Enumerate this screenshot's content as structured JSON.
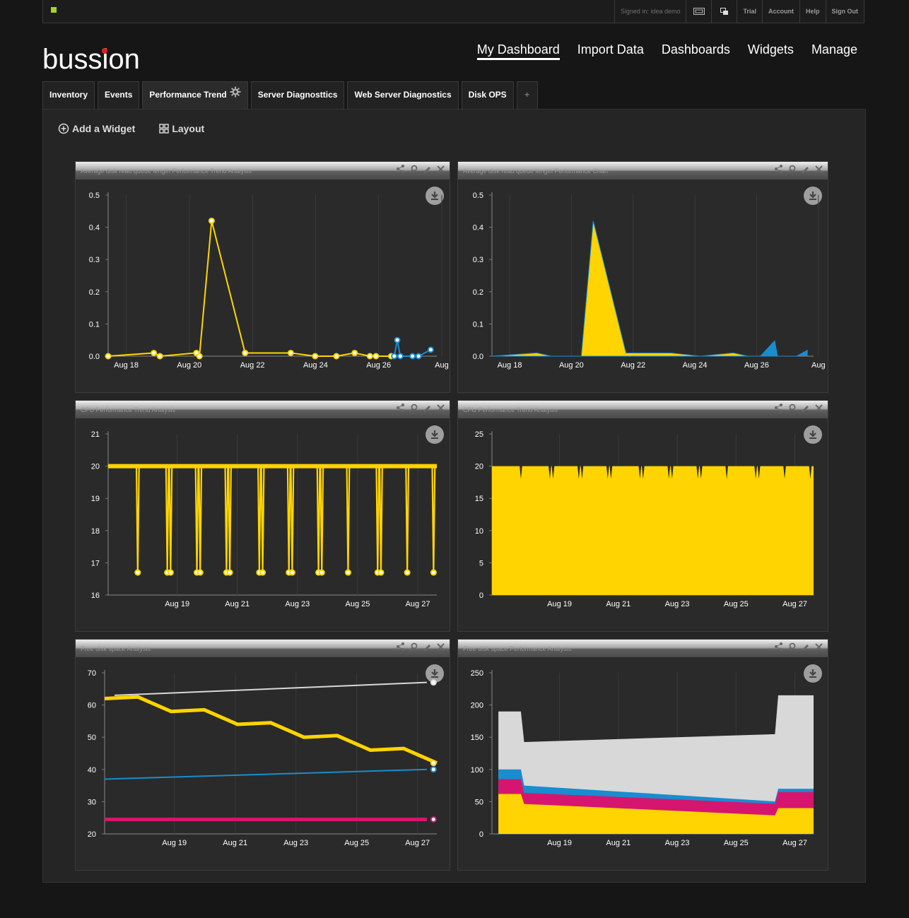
{
  "topbar": {
    "signed_in": "Signed in: idea demo",
    "links": [
      "Trial",
      "Account",
      "Help",
      "Sign Out"
    ],
    "icons": [
      "fullscreen-icon",
      "windows-icon"
    ]
  },
  "logo": "bussion",
  "nav": [
    "My Dashboard",
    "Import Data",
    "Dashboards",
    "Widgets",
    "Manage"
  ],
  "tabs": [
    "Inventory",
    "Events",
    "Performance Trend",
    "Server Diagnosttics",
    "Web Server Diagnostics",
    "Disk OPS",
    "+"
  ],
  "actions": {
    "add_widget": "Add a Widget",
    "layout": "Layout"
  },
  "colors": {
    "yellow": "#ffd400",
    "blue": "#1a8cd0",
    "magenta": "#d6156f",
    "gray": "#d8d8d8",
    "accent": "#a6d51e"
  },
  "widgets": [
    {
      "title": "Average disk read queue length Performance Trend Analysis",
      "chart_data": {
        "type": "line",
        "x_labels": [
          "Aug 18",
          "Aug 20",
          "Aug 22",
          "Aug 24",
          "Aug 26",
          "Aug"
        ],
        "y_ticks": [
          "0.5",
          "0.4",
          "0.3",
          "0.2",
          "0.1",
          "0.0"
        ],
        "ylim": [
          0,
          0.5
        ],
        "series": [
          {
            "color": "#ffd400",
            "points": [
              [
                0,
                0
              ],
              [
                1.5,
                0.01
              ],
              [
                1.7,
                0
              ],
              [
                2.9,
                0.01
              ],
              [
                3.0,
                0
              ],
              [
                3.4,
                0.42
              ],
              [
                4.5,
                0.01
              ],
              [
                6.0,
                0.01
              ],
              [
                6.8,
                0
              ],
              [
                7.5,
                0
              ],
              [
                8.1,
                0.01
              ],
              [
                8.6,
                0
              ],
              [
                8.8,
                0
              ],
              [
                9.3,
                0
              ]
            ]
          },
          {
            "color": "#1a8cd0",
            "points": [
              [
                9.4,
                0
              ],
              [
                9.5,
                0.05
              ],
              [
                9.6,
                0
              ],
              [
                10.0,
                0
              ],
              [
                10.2,
                0
              ],
              [
                10.6,
                0.02
              ]
            ]
          }
        ]
      }
    },
    {
      "title": "Average disk read queue length Performance Chart",
      "chart_data": {
        "type": "area",
        "x_labels": [
          "Aug 18",
          "Aug 20",
          "Aug 22",
          "Aug 24",
          "Aug 26",
          "Aug"
        ],
        "y_ticks": [
          "0.5",
          "0.4",
          "0.3",
          "0.2",
          "0.1",
          "0.0"
        ],
        "ylim": [
          0,
          0.5
        ],
        "series": [
          {
            "color": "#ffd400",
            "points": [
              [
                0,
                0
              ],
              [
                1.5,
                0.01
              ],
              [
                2.0,
                0
              ],
              [
                3.0,
                0
              ],
              [
                3.4,
                0.42
              ],
              [
                4.5,
                0.01
              ],
              [
                6.0,
                0.01
              ],
              [
                7.0,
                0
              ],
              [
                8.1,
                0.01
              ],
              [
                8.6,
                0
              ],
              [
                10.3,
                0
              ]
            ]
          },
          {
            "color": "#1a8cd0",
            "points": [
              [
                9.0,
                0
              ],
              [
                9.5,
                0.05
              ],
              [
                9.6,
                0
              ],
              [
                10.2,
                0
              ],
              [
                10.6,
                0.02
              ]
            ]
          }
        ]
      }
    },
    {
      "title": "CPU Performance Trend Analysis",
      "chart_data": {
        "type": "line",
        "x_labels": [
          "Aug 19",
          "Aug 21",
          "Aug 23",
          "Aug 25",
          "Aug 27"
        ],
        "y_ticks": [
          "21",
          "20",
          "19",
          "18",
          "17",
          "16"
        ],
        "ylim": [
          16,
          21
        ],
        "value": 20,
        "dip_to": 16.7
      }
    },
    {
      "title": "CPU Performance Trend Analysis",
      "chart_data": {
        "type": "area",
        "x_labels": [
          "Aug 19",
          "Aug 21",
          "Aug 23",
          "Aug 25",
          "Aug 27"
        ],
        "y_ticks": [
          "25",
          "20",
          "15",
          "10",
          "5",
          "0"
        ],
        "ylim": [
          0,
          25
        ],
        "value": 20
      }
    },
    {
      "title": "Free disk space Analysis",
      "chart_data": {
        "type": "line",
        "x_labels": [
          "Aug 19",
          "Aug 21",
          "Aug 23",
          "Aug 25",
          "Aug 27"
        ],
        "y_ticks": [
          "70",
          "60",
          "50",
          "40",
          "30",
          "20"
        ],
        "ylim": [
          20,
          70
        ],
        "series": [
          {
            "color": "#ffd400",
            "from": 62,
            "to": 42
          },
          {
            "color": "#d8d8d8",
            "from": 63,
            "to": 67
          },
          {
            "color": "#1a8cd0",
            "from": 37,
            "to": 40
          },
          {
            "color": "#d6156f",
            "from": 24.5,
            "to": 24.5
          }
        ]
      }
    },
    {
      "title": "Free disk space Performance Analysis",
      "chart_data": {
        "type": "area",
        "x_labels": [
          "Aug 19",
          "Aug 21",
          "Aug 23",
          "Aug 25",
          "Aug 27"
        ],
        "y_ticks": [
          "250",
          "200",
          "150",
          "100",
          "50",
          "0"
        ],
        "ylim": [
          0,
          250
        ],
        "series": [
          {
            "color": "#ffd400",
            "from": 62,
            "to": 40
          },
          {
            "color": "#d6156f",
            "from": 85,
            "to": 65
          },
          {
            "color": "#1a8cd0",
            "from": 100,
            "to": 70
          },
          {
            "color": "#d8d8d8",
            "from": 190,
            "to": 215
          }
        ]
      }
    }
  ]
}
